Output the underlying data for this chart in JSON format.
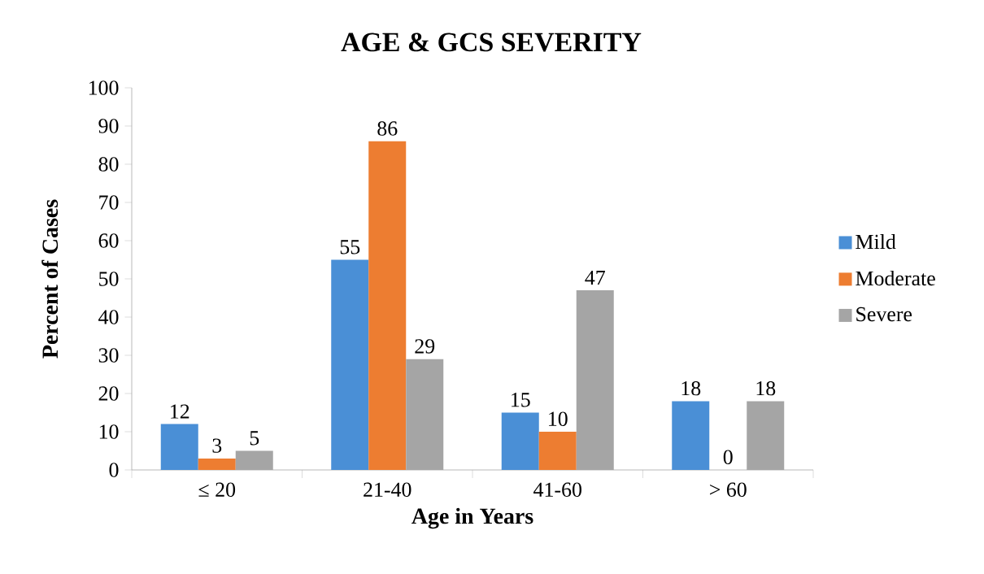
{
  "chart_data": {
    "type": "bar",
    "title": "AGE & GCS SEVERITY",
    "xlabel": "Age in Years",
    "ylabel": "Percent of Cases",
    "categories": [
      "≤ 20",
      "21-40",
      "41-60",
      "> 60"
    ],
    "series": [
      {
        "name": "Mild",
        "color": "#4a8fd6",
        "values": [
          12,
          55,
          15,
          18
        ]
      },
      {
        "name": "Moderate",
        "color": "#ed7d31",
        "values": [
          3,
          86,
          10,
          0
        ]
      },
      {
        "name": "Severe",
        "color": "#a5a5a5",
        "values": [
          5,
          29,
          47,
          18
        ]
      }
    ],
    "ylim": [
      0,
      100
    ],
    "yticks": [
      0,
      10,
      20,
      30,
      40,
      50,
      60,
      70,
      80,
      90,
      100
    ],
    "data_labels": true,
    "legend": "right",
    "grid": false
  }
}
